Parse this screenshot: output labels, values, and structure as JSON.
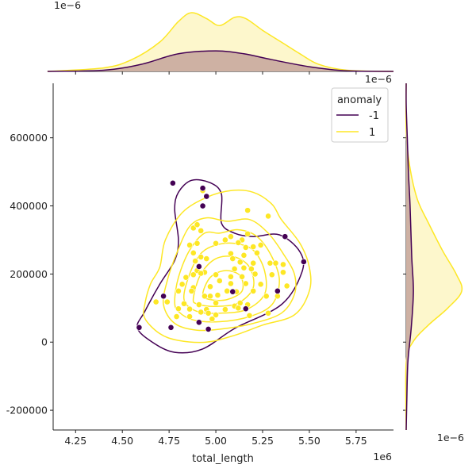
{
  "chart_data": {
    "type": "scatter",
    "title": "",
    "xlabel": "total_length",
    "ylabel": "",
    "x_multiplier_label": "1e6",
    "y_marginal_scale_label": "1e−6",
    "x_marginal_scale_label": "1e−6",
    "xlim": [
      4.13,
      5.95
    ],
    "ylim": [
      -258000,
      760000
    ],
    "x_ticks": [
      4.25,
      4.5,
      4.75,
      5.0,
      5.25,
      5.5,
      5.75
    ],
    "x_tick_labels": [
      "4.25",
      "4.50",
      "4.75",
      "5.00",
      "5.25",
      "5.50",
      "5.75"
    ],
    "y_ticks": [
      -200000,
      0,
      200000,
      400000,
      600000
    ],
    "y_tick_labels": [
      "-200000",
      "0",
      "200000",
      "400000",
      "600000"
    ],
    "legend": {
      "title": "anomaly",
      "position": "top-right",
      "entries": [
        {
          "label": "-1",
          "color": "#440154"
        },
        {
          "label": "1",
          "color": "#fde725"
        }
      ]
    },
    "grid": false,
    "series": [
      {
        "name": "-1",
        "color": "#440154",
        "points": [
          [
            4.77,
            467000
          ],
          [
            4.93,
            452000
          ],
          [
            4.95,
            428000
          ],
          [
            4.93,
            400000
          ],
          [
            5.37,
            310000
          ],
          [
            5.47,
            236000
          ],
          [
            4.91,
            222000
          ],
          [
            5.09,
            148000
          ],
          [
            5.33,
            150000
          ],
          [
            4.72,
            135000
          ],
          [
            5.16,
            98000
          ],
          [
            4.91,
            58000
          ],
          [
            4.96,
            38000
          ],
          [
            4.59,
            43000
          ],
          [
            4.76,
            43000
          ]
        ]
      },
      {
        "name": "1",
        "color": "#fde725",
        "points": [
          [
            4.93,
            445000
          ],
          [
            5.17,
            387000
          ],
          [
            5.28,
            370000
          ],
          [
            4.88,
            335000
          ],
          [
            4.9,
            345000
          ],
          [
            4.92,
            327000
          ],
          [
            5.05,
            300000
          ],
          [
            5.08,
            310000
          ],
          [
            5.14,
            300000
          ],
          [
            5.17,
            318000
          ],
          [
            4.86,
            285000
          ],
          [
            4.9,
            290000
          ],
          [
            5.0,
            290000
          ],
          [
            5.12,
            292000
          ],
          [
            5.16,
            278000
          ],
          [
            5.2,
            280000
          ],
          [
            5.24,
            285000
          ],
          [
            4.88,
            262000
          ],
          [
            4.92,
            250000
          ],
          [
            5.08,
            260000
          ],
          [
            5.15,
            255000
          ],
          [
            5.22,
            262000
          ],
          [
            4.89,
            238000
          ],
          [
            4.95,
            245000
          ],
          [
            5.09,
            245000
          ],
          [
            5.13,
            235000
          ],
          [
            5.2,
            232000
          ],
          [
            5.29,
            232000
          ],
          [
            5.32,
            232000
          ],
          [
            5.36,
            228000
          ],
          [
            4.9,
            210000
          ],
          [
            4.94,
            205000
          ],
          [
            5.0,
            198000
          ],
          [
            5.1,
            215000
          ],
          [
            5.15,
            218000
          ],
          [
            5.19,
            215000
          ],
          [
            4.84,
            190000
          ],
          [
            4.88,
            198000
          ],
          [
            4.92,
            202000
          ],
          [
            5.02,
            180000
          ],
          [
            5.08,
            192000
          ],
          [
            5.14,
            192000
          ],
          [
            5.21,
            200000
          ],
          [
            5.3,
            198000
          ],
          [
            5.36,
            205000
          ],
          [
            4.82,
            170000
          ],
          [
            4.88,
            160000
          ],
          [
            4.97,
            163000
          ],
          [
            5.08,
            172000
          ],
          [
            5.16,
            172000
          ],
          [
            5.24,
            170000
          ],
          [
            5.38,
            165000
          ],
          [
            4.8,
            150000
          ],
          [
            4.87,
            150000
          ],
          [
            4.94,
            135000
          ],
          [
            4.97,
            135000
          ],
          [
            5.01,
            138000
          ],
          [
            5.06,
            150000
          ],
          [
            5.11,
            148000
          ],
          [
            5.2,
            150000
          ],
          [
            5.27,
            135000
          ],
          [
            5.33,
            135000
          ],
          [
            4.68,
            118000
          ],
          [
            4.74,
            118000
          ],
          [
            4.83,
            113000
          ],
          [
            4.91,
            110000
          ],
          [
            5.0,
            115000
          ],
          [
            5.1,
            106000
          ],
          [
            5.13,
            115000
          ],
          [
            5.17,
            110000
          ],
          [
            4.8,
            98000
          ],
          [
            4.86,
            97000
          ],
          [
            4.92,
            88000
          ],
          [
            4.95,
            96000
          ],
          [
            5.05,
            96000
          ],
          [
            5.12,
            100000
          ],
          [
            5.18,
            78000
          ],
          [
            4.79,
            75000
          ],
          [
            4.86,
            75000
          ],
          [
            4.96,
            85000
          ],
          [
            5.0,
            80000
          ],
          [
            5.28,
            85000
          ],
          [
            4.98,
            68000
          ]
        ]
      }
    ],
    "marginal_x": {
      "series": [
        {
          "name": "-1",
          "color": "#440154",
          "fill": "#c9a99e",
          "density": [
            [
              4.1,
              0
            ],
            [
              4.4,
              0.02
            ],
            [
              4.6,
              0.12
            ],
            [
              4.8,
              0.3
            ],
            [
              5.0,
              0.35
            ],
            [
              5.15,
              0.3
            ],
            [
              5.3,
              0.2
            ],
            [
              5.5,
              0.08
            ],
            [
              5.7,
              0.01
            ],
            [
              5.95,
              0
            ]
          ]
        },
        {
          "name": "1",
          "color": "#fde725",
          "fill": "#fdf6c6",
          "density": [
            [
              4.1,
              0
            ],
            [
              4.4,
              0.06
            ],
            [
              4.55,
              0.2
            ],
            [
              4.7,
              0.5
            ],
            [
              4.8,
              0.85
            ],
            [
              4.87,
              1.0
            ],
            [
              4.95,
              0.9
            ],
            [
              5.02,
              0.78
            ],
            [
              5.1,
              0.92
            ],
            [
              5.16,
              0.9
            ],
            [
              5.25,
              0.7
            ],
            [
              5.35,
              0.5
            ],
            [
              5.45,
              0.3
            ],
            [
              5.55,
              0.12
            ],
            [
              5.7,
              0.02
            ],
            [
              5.95,
              0
            ]
          ]
        }
      ]
    },
    "marginal_y": {
      "series": [
        {
          "name": "-1",
          "color": "#440154",
          "fill": "#c9a99e",
          "density": [
            [
              -258000,
              0
            ],
            [
              -180000,
              0.01
            ],
            [
              -60000,
              0.03
            ],
            [
              40000,
              0.09
            ],
            [
              150000,
              0.13
            ],
            [
              250000,
              0.1
            ],
            [
              400000,
              0.07
            ],
            [
              500000,
              0.04
            ],
            [
              600000,
              0.02
            ],
            [
              700000,
              0
            ],
            [
              760000,
              0
            ]
          ]
        },
        {
          "name": "1",
          "color": "#fde725",
          "fill": "#fdf6c6",
          "density": [
            [
              -258000,
              0
            ],
            [
              -60000,
              0
            ],
            [
              0,
              0.12
            ],
            [
              50000,
              0.4
            ],
            [
              100000,
              0.75
            ],
            [
              150000,
              1.0
            ],
            [
              200000,
              0.9
            ],
            [
              270000,
              0.65
            ],
            [
              350000,
              0.4
            ],
            [
              420000,
              0.2
            ],
            [
              520000,
              0.06
            ],
            [
              620000,
              0
            ],
            [
              760000,
              0
            ]
          ]
        }
      ]
    },
    "kde_contours": [
      {
        "name": "-1",
        "color": "#440154",
        "levels": [
          [
            [
              4.58,
              42000
            ],
            [
              4.62,
              90000
            ],
            [
              4.7,
              170000
            ],
            [
              4.78,
              240000
            ],
            [
              4.8,
              300000
            ],
            [
              4.78,
              390000
            ],
            [
              4.8,
              440000
            ],
            [
              4.87,
              475000
            ],
            [
              4.97,
              468000
            ],
            [
              5.03,
              435000
            ],
            [
              5.03,
              350000
            ],
            [
              5.1,
              320000
            ],
            [
              5.2,
              310000
            ],
            [
              5.34,
              315000
            ],
            [
              5.45,
              265000
            ],
            [
              5.46,
              205000
            ],
            [
              5.35,
              110000
            ],
            [
              5.1,
              40000
            ],
            [
              4.93,
              -20000
            ],
            [
              4.78,
              -30000
            ],
            [
              4.66,
              0
            ],
            [
              4.58,
              42000
            ]
          ]
        ]
      },
      {
        "name": "1",
        "color": "#fde725",
        "levels": [
          [
            [
              4.62,
              110000
            ],
            [
              4.65,
              170000
            ],
            [
              4.7,
              220000
            ],
            [
              4.73,
              300000
            ],
            [
              4.82,
              380000
            ],
            [
              4.95,
              425000
            ],
            [
              5.08,
              445000
            ],
            [
              5.2,
              440000
            ],
            [
              5.3,
              405000
            ],
            [
              5.35,
              360000
            ],
            [
              5.45,
              290000
            ],
            [
              5.5,
              220000
            ],
            [
              5.5,
              150000
            ],
            [
              5.42,
              80000
            ],
            [
              5.25,
              50000
            ],
            [
              5.1,
              20000
            ],
            [
              4.95,
              0
            ],
            [
              4.8,
              5000
            ],
            [
              4.7,
              25000
            ],
            [
              4.62,
              70000
            ],
            [
              4.62,
              110000
            ]
          ],
          [
            [
              4.72,
              110000
            ],
            [
              4.74,
              180000
            ],
            [
              4.79,
              260000
            ],
            [
              4.86,
              340000
            ],
            [
              4.95,
              365000
            ],
            [
              5.06,
              355000
            ],
            [
              5.18,
              360000
            ],
            [
              5.28,
              320000
            ],
            [
              5.36,
              260000
            ],
            [
              5.42,
              200000
            ],
            [
              5.42,
              140000
            ],
            [
              5.35,
              85000
            ],
            [
              5.2,
              55000
            ],
            [
              5.05,
              40000
            ],
            [
              4.9,
              35000
            ],
            [
              4.78,
              55000
            ],
            [
              4.72,
              110000
            ]
          ],
          [
            [
              4.78,
              120000
            ],
            [
              4.8,
              190000
            ],
            [
              4.86,
              270000
            ],
            [
              4.94,
              320000
            ],
            [
              5.02,
              320000
            ],
            [
              5.12,
              330000
            ],
            [
              5.22,
              310000
            ],
            [
              5.3,
              250000
            ],
            [
              5.34,
              180000
            ],
            [
              5.3,
              110000
            ],
            [
              5.18,
              75000
            ],
            [
              5.02,
              60000
            ],
            [
              4.88,
              65000
            ],
            [
              4.8,
              90000
            ],
            [
              4.78,
              120000
            ]
          ],
          [
            [
              4.83,
              125000
            ],
            [
              4.86,
              200000
            ],
            [
              4.92,
              260000
            ],
            [
              5.0,
              285000
            ],
            [
              5.1,
              290000
            ],
            [
              5.2,
              270000
            ],
            [
              5.26,
              210000
            ],
            [
              5.26,
              140000
            ],
            [
              5.16,
              95000
            ],
            [
              5.02,
              85000
            ],
            [
              4.9,
              90000
            ],
            [
              4.83,
              125000
            ]
          ],
          [
            [
              4.88,
              130000
            ],
            [
              4.92,
              200000
            ],
            [
              5.0,
              245000
            ],
            [
              5.1,
              250000
            ],
            [
              5.18,
              220000
            ],
            [
              5.2,
              160000
            ],
            [
              5.12,
              115000
            ],
            [
              5.0,
              105000
            ],
            [
              4.9,
              112000
            ],
            [
              4.88,
              130000
            ]
          ],
          [
            [
              4.93,
              140000
            ],
            [
              4.97,
              190000
            ],
            [
              5.05,
              210000
            ],
            [
              5.13,
              195000
            ],
            [
              5.14,
              150000
            ],
            [
              5.06,
              125000
            ],
            [
              4.97,
              125000
            ],
            [
              4.93,
              140000
            ]
          ]
        ]
      }
    ]
  }
}
